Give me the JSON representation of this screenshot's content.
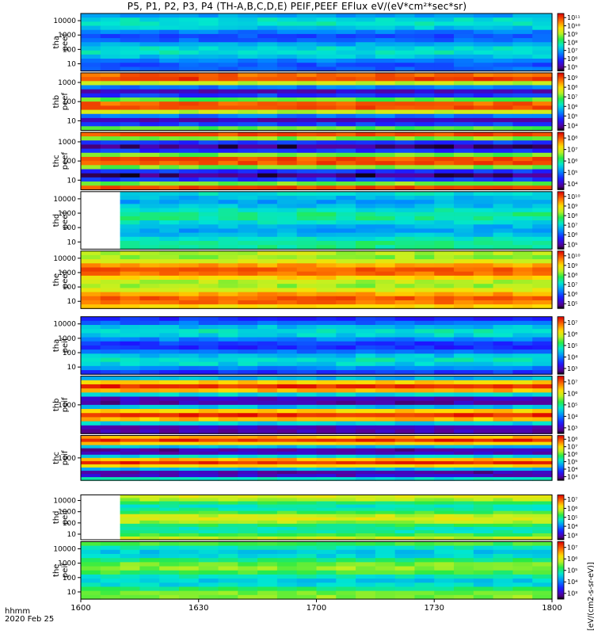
{
  "title": "P5, P1, P2, P3, P4 (TH-A,B,C,D,E) PEIF,PEEF EFlux eV/(eV*cm²*sec*sr)",
  "xaxis": {
    "label_line1": "hhmm",
    "label_line2": "2020 Feb 25"
  },
  "bottom_colorbar_label": "[eV/(cm2-s-sr-eV)]",
  "chart_data": {
    "type": "heatmap",
    "title": "P5, P1, P2, P3, P4 (TH-A,B,C,D,E) PEIF,PEEF EFlux eV/(eV*cm²*sec*sr)",
    "x_ticks": [
      "1600",
      "1630",
      "1700",
      "1730",
      "1800"
    ],
    "x_range": [
      "16:00",
      "18:00"
    ],
    "y_scale": "log",
    "colormap": "rainbow",
    "panels": [
      {
        "id": "tha-peef",
        "ylabel": "tha peef",
        "y_ticks": [
          "10",
          "100",
          "1000",
          "10000"
        ],
        "colorbar_ticks": [
          "10⁵",
          "10⁶",
          "10⁷",
          "10⁸",
          "10⁹",
          "10¹⁰",
          "10¹¹"
        ],
        "level_min": 0.25,
        "level_max": 0.45,
        "white_until": 0
      },
      {
        "id": "thb-peef",
        "ylabel": "thb peef",
        "y_ticks": [
          "10",
          "100",
          "1000"
        ],
        "colorbar_ticks": [
          "10⁴",
          "10⁵",
          "10⁶",
          "10⁷",
          "10⁸",
          "10⁹"
        ],
        "level_min": 0.1,
        "level_max": 0.95,
        "white_until": 0
      },
      {
        "id": "thc-peef",
        "ylabel": "thc peef",
        "y_ticks": [
          "10",
          "100",
          "1000"
        ],
        "colorbar_ticks": [
          "10⁴",
          "10⁵",
          "10⁶",
          "10⁷",
          "10⁸"
        ],
        "level_min": 0.05,
        "level_max": 0.95,
        "white_until": 0
      },
      {
        "id": "thd-peef",
        "ylabel": "thd peef",
        "y_ticks": [
          "10",
          "100",
          "1000",
          "10000"
        ],
        "colorbar_ticks": [
          "10⁵",
          "10⁶",
          "10⁷",
          "10⁸",
          "10⁹",
          "10¹⁰"
        ],
        "level_min": 0.35,
        "level_max": 0.5,
        "white_until": 0.06
      },
      {
        "id": "the-peef",
        "ylabel": "the peef",
        "y_ticks": [
          "10",
          "100",
          "1000",
          "10000"
        ],
        "colorbar_ticks": [
          "10⁵",
          "10⁶",
          "10⁷",
          "10⁸",
          "10⁹",
          "10¹⁰"
        ],
        "level_min": 0.62,
        "level_max": 0.9,
        "white_until": 0
      },
      {
        "id": "tha-peif",
        "ylabel": "tha peif",
        "y_ticks": [
          "10",
          "100",
          "1000",
          "10000"
        ],
        "colorbar_ticks": [
          "10³",
          "10⁴",
          "10⁵",
          "10⁶",
          "10⁷"
        ],
        "level_min": 0.2,
        "level_max": 0.45,
        "white_until": 0
      },
      {
        "id": "thb-peif",
        "ylabel": "thb peif",
        "y_ticks": [
          "1000"
        ],
        "colorbar_ticks": [
          "10³",
          "10⁴",
          "10⁵",
          "10⁶",
          "10⁷"
        ],
        "level_min": 0.05,
        "level_max": 0.95,
        "white_until": 0
      },
      {
        "id": "thc-peif",
        "ylabel": "thc peif",
        "y_ticks": [
          "1000"
        ],
        "colorbar_ticks": [
          "10³",
          "10⁴",
          "10⁵",
          "10⁶",
          "10⁷",
          "10⁸"
        ],
        "level_min": 0.05,
        "level_max": 0.95,
        "white_until": 0
      },
      {
        "id": "thd-peif",
        "ylabel": "thd peif",
        "y_ticks": [
          "10",
          "100",
          "1000",
          "10000"
        ],
        "colorbar_ticks": [
          "10³",
          "10⁴",
          "10⁵",
          "10⁶",
          "10⁷"
        ],
        "level_min": 0.45,
        "level_max": 0.7,
        "white_until": 0.055
      },
      {
        "id": "the-peif",
        "ylabel": "the peif",
        "y_ticks": [
          "10",
          "100",
          "1000",
          "10000"
        ],
        "colorbar_ticks": [
          "10³",
          "10⁴",
          "10⁵",
          "10⁶",
          "10⁷"
        ],
        "level_min": 0.4,
        "level_max": 0.62,
        "white_until": 0
      }
    ]
  }
}
